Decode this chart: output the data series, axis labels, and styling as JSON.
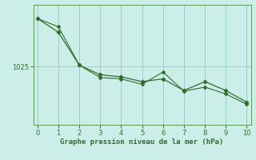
{
  "background_color": "#cceee8",
  "grid_color": "#99cccc",
  "line_color": "#2d6e2d",
  "line1_x": [
    0,
    1,
    2,
    3,
    4,
    5,
    6,
    7,
    8,
    9,
    10
  ],
  "line1_y": [
    1032.0,
    1030.0,
    1025.2,
    1023.8,
    1023.5,
    1022.8,
    1023.2,
    1021.5,
    1022.8,
    1021.5,
    1019.8
  ],
  "line2_x": [
    0,
    1,
    2,
    3,
    4,
    5,
    6,
    7,
    8,
    9,
    10
  ],
  "line2_y": [
    1032.0,
    1030.8,
    1025.2,
    1023.4,
    1023.2,
    1022.4,
    1024.2,
    1021.4,
    1022.0,
    1021.0,
    1019.5
  ],
  "xlabel": "Graphe pression niveau de la mer (hPa)",
  "ytick_labels": [
    "1025"
  ],
  "ytick_values": [
    1025
  ],
  "xlim": [
    -0.2,
    10.2
  ],
  "ylim": [
    1016.5,
    1034.0
  ],
  "xticks": [
    0,
    1,
    2,
    3,
    4,
    5,
    6,
    7,
    8,
    9,
    10
  ]
}
